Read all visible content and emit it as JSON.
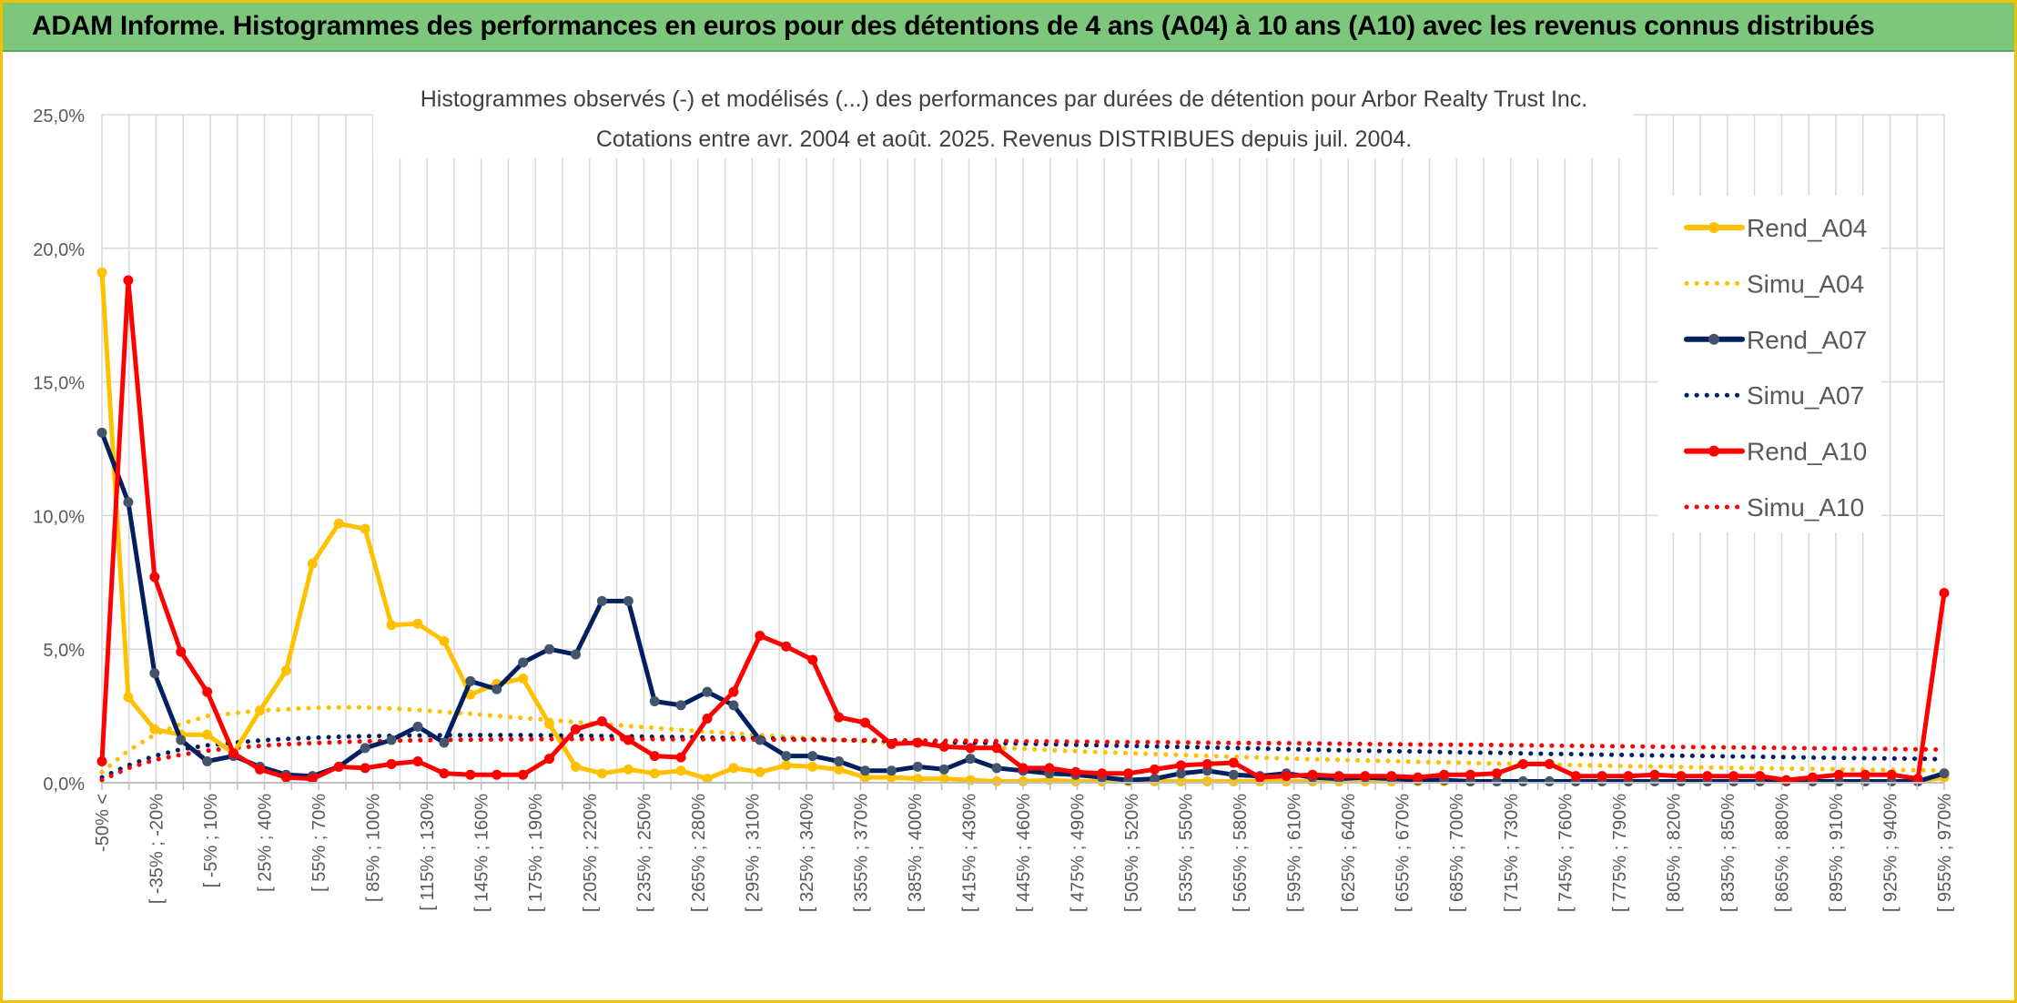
{
  "banner": {
    "title": "ADAM Informe. Histogrammes des performances en euros pour des détentions de 4 ans (A04) à 10 ans (A10) avec les revenus connus distribués"
  },
  "colors": {
    "A04": "#ffc000",
    "A07": "#002060",
    "A10": "#ff0000",
    "grid": "#d9d9d9",
    "frame": "#f2c200",
    "banner": "#7dc77d"
  },
  "chart_data": {
    "type": "line",
    "title_line1": "Histogrammes observés (-) et modélisés (...) des performances par durées de détention pour Arbor Realty Trust Inc.",
    "title_line2": "Cotations entre avr. 2004 et août. 2025. Revenus DISTRIBUES depuis juil. 2004.",
    "ylim": [
      0,
      25
    ],
    "yticks": [
      "0,0%",
      "5,0%",
      "10,0%",
      "15,0%",
      "20,0%",
      "25,0%"
    ],
    "legend_position": "right",
    "grid": true,
    "x_labels": [
      "-50% <",
      "[ -35% ; -20%",
      "[ -5% ; 10%",
      "[ 25% ; 40%",
      "[ 55% ; 70%",
      "[ 85% ; 100%",
      "[ 115% ; 130%",
      "[ 145% ; 160%",
      "[ 175% ; 190%",
      "[ 205% ; 220%",
      "[ 235% ; 250%",
      "[ 265% ; 280%",
      "[ 295% ; 310%",
      "[ 325% ; 340%",
      "[ 355% ; 370%",
      "[ 385% ; 400%",
      "[ 415% ; 430%",
      "[ 445% ; 460%",
      "[ 475% ; 490%",
      "[ 505% ; 520%",
      "[ 535% ; 550%",
      "[ 565% ; 580%",
      "[ 595% ; 610%",
      "[ 625% ; 640%",
      "[ 655% ; 670%",
      "[ 685% ; 700%",
      "[ 715% ; 730%",
      "[ 745% ; 760%",
      "[ 775% ; 790%",
      "[ 805% ; 820%",
      "[ 835% ; 850%",
      "[ 865% ; 880%",
      "[ 895% ; 910%",
      "[ 925% ; 940%",
      "[ 955% ; 970%"
    ],
    "series": [
      {
        "name": "Rend_A04",
        "style": "solid",
        "color": "#ffc000",
        "values": [
          19.1,
          3.2,
          2.0,
          1.8,
          1.8,
          1.1,
          2.7,
          4.2,
          8.2,
          9.7,
          9.5,
          5.9,
          5.95,
          5.3,
          3.3,
          3.7,
          3.9,
          2.2,
          0.6,
          0.35,
          0.5,
          0.35,
          0.45,
          0.15,
          0.55,
          0.4,
          0.65,
          0.6,
          0.5,
          0.2,
          0.2,
          0.15,
          0.15,
          0.1,
          0.05,
          0.05,
          0.1,
          0.05,
          0.05,
          0.05,
          0.05,
          0.05,
          0.05,
          0.05,
          0.05,
          0.05,
          0.05,
          0.05,
          0.05,
          0.05,
          0.05,
          0.05,
          0.05,
          0.05,
          0.05,
          0.05,
          0.05,
          0.05,
          0.05,
          0.05,
          0.05,
          0.05,
          0.05,
          0.05,
          0.05,
          0.05,
          0.05,
          0.05,
          0.05,
          0.05,
          0.2
        ]
      },
      {
        "name": "Simu_A04",
        "style": "dotted",
        "color": "#ffc000",
        "values": [
          0.4,
          1.2,
          1.8,
          2.2,
          2.5,
          2.6,
          2.7,
          2.75,
          2.8,
          2.82,
          2.82,
          2.78,
          2.72,
          2.65,
          2.58,
          2.5,
          2.42,
          2.35,
          2.27,
          2.2,
          2.12,
          2.05,
          1.98,
          1.91,
          1.85,
          1.78,
          1.72,
          1.66,
          1.61,
          1.55,
          1.5,
          1.45,
          1.4,
          1.35,
          1.31,
          1.27,
          1.22,
          1.18,
          1.14,
          1.11,
          1.07,
          1.04,
          1.0,
          0.97,
          0.94,
          0.91,
          0.88,
          0.86,
          0.83,
          0.81,
          0.78,
          0.76,
          0.74,
          0.72,
          0.7,
          0.68,
          0.66,
          0.64,
          0.62,
          0.61,
          0.59,
          0.57,
          0.56,
          0.54,
          0.53,
          0.52,
          0.5,
          0.49,
          0.48,
          0.47,
          0.46
        ]
      },
      {
        "name": "Rend_A07",
        "style": "solid",
        "color": "#002060",
        "values": [
          13.1,
          10.5,
          4.1,
          1.6,
          0.8,
          1.0,
          0.6,
          0.3,
          0.25,
          0.6,
          1.3,
          1.6,
          2.1,
          1.5,
          3.8,
          3.5,
          4.5,
          5.0,
          4.8,
          6.8,
          6.8,
          3.05,
          2.9,
          3.4,
          2.9,
          1.6,
          1.0,
          1.0,
          0.8,
          0.45,
          0.45,
          0.6,
          0.5,
          0.9,
          0.55,
          0.45,
          0.35,
          0.3,
          0.2,
          0.1,
          0.15,
          0.35,
          0.45,
          0.3,
          0.25,
          0.35,
          0.2,
          0.15,
          0.2,
          0.15,
          0.1,
          0.1,
          0.05,
          0.05,
          0.05,
          0.05,
          0.05,
          0.05,
          0.05,
          0.05,
          0.05,
          0.05,
          0.05,
          0.05,
          0.05,
          0.05,
          0.05,
          0.05,
          0.05,
          0.05,
          0.35
        ]
      },
      {
        "name": "Simu_A07",
        "style": "dotted",
        "color": "#002060",
        "values": [
          0.2,
          0.65,
          1.0,
          1.25,
          1.4,
          1.5,
          1.58,
          1.64,
          1.68,
          1.72,
          1.74,
          1.76,
          1.77,
          1.78,
          1.78,
          1.78,
          1.78,
          1.77,
          1.76,
          1.75,
          1.74,
          1.72,
          1.71,
          1.69,
          1.68,
          1.66,
          1.64,
          1.62,
          1.6,
          1.58,
          1.56,
          1.54,
          1.52,
          1.5,
          1.48,
          1.46,
          1.44,
          1.42,
          1.4,
          1.38,
          1.36,
          1.34,
          1.32,
          1.3,
          1.28,
          1.26,
          1.24,
          1.22,
          1.2,
          1.18,
          1.17,
          1.15,
          1.13,
          1.12,
          1.1,
          1.08,
          1.07,
          1.05,
          1.04,
          1.02,
          1.01,
          1.0,
          0.98,
          0.97,
          0.96,
          0.94,
          0.93,
          0.92,
          0.91,
          0.9,
          0.88
        ]
      },
      {
        "name": "Rend_A10",
        "style": "solid",
        "color": "#ff0000",
        "values": [
          0.8,
          18.8,
          7.7,
          4.9,
          3.4,
          1.1,
          0.5,
          0.2,
          0.15,
          0.6,
          0.55,
          0.7,
          0.8,
          0.35,
          0.3,
          0.3,
          0.3,
          0.9,
          2.0,
          2.3,
          1.6,
          1.0,
          0.95,
          2.4,
          3.4,
          5.5,
          5.1,
          4.6,
          2.45,
          2.25,
          1.45,
          1.5,
          1.35,
          1.3,
          1.3,
          0.55,
          0.55,
          0.4,
          0.35,
          0.35,
          0.5,
          0.65,
          0.7,
          0.75,
          0.2,
          0.25,
          0.3,
          0.25,
          0.25,
          0.25,
          0.2,
          0.3,
          0.3,
          0.35,
          0.7,
          0.7,
          0.25,
          0.25,
          0.25,
          0.3,
          0.25,
          0.25,
          0.25,
          0.25,
          0.1,
          0.2,
          0.3,
          0.3,
          0.3,
          0.15,
          7.1
        ]
      },
      {
        "name": "Simu_A10",
        "style": "dotted",
        "color": "#ff0000",
        "values": [
          0.1,
          0.55,
          0.85,
          1.05,
          1.2,
          1.3,
          1.38,
          1.44,
          1.48,
          1.52,
          1.55,
          1.57,
          1.59,
          1.6,
          1.61,
          1.62,
          1.62,
          1.63,
          1.63,
          1.63,
          1.63,
          1.63,
          1.62,
          1.62,
          1.62,
          1.61,
          1.61,
          1.6,
          1.6,
          1.59,
          1.59,
          1.58,
          1.57,
          1.57,
          1.56,
          1.55,
          1.55,
          1.54,
          1.53,
          1.52,
          1.52,
          1.51,
          1.5,
          1.49,
          1.48,
          1.48,
          1.47,
          1.46,
          1.45,
          1.44,
          1.43,
          1.42,
          1.42,
          1.41,
          1.4,
          1.39,
          1.38,
          1.37,
          1.36,
          1.35,
          1.34,
          1.33,
          1.32,
          1.31,
          1.3,
          1.29,
          1.28,
          1.27,
          1.26,
          1.25,
          1.24
        ]
      }
    ]
  }
}
